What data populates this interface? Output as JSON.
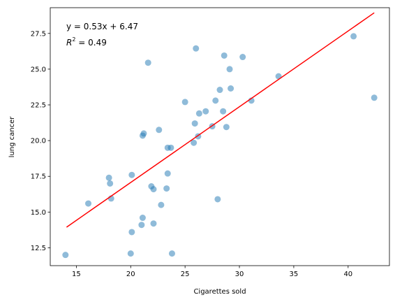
{
  "chart_data": {
    "type": "scatter",
    "xlabel": "Cigarettes sold",
    "ylabel": "lung cancer",
    "xlim": [
      12.6,
      43.8
    ],
    "ylim": [
      11.25,
      29.3
    ],
    "xticks": [
      "15",
      "20",
      "25",
      "30",
      "35",
      "40"
    ],
    "yticks": [
      "12.5",
      "15.0",
      "17.5",
      "20.0",
      "22.5",
      "25.0",
      "27.5"
    ],
    "grid": false,
    "annotation": {
      "equation": "y = 0.53x + 6.47",
      "r2_label": "R",
      "r2_sup": "2",
      "r2_value": " = 0.49"
    },
    "fit": {
      "slope": 0.53,
      "intercept": 6.47,
      "x_range": [
        14.1,
        42.4
      ],
      "color": "#ff0000"
    },
    "point_color": "#1f77b4",
    "points": [
      [
        14.0,
        12.0
      ],
      [
        16.1,
        15.6
      ],
      [
        18.0,
        17.4
      ],
      [
        18.1,
        17.0
      ],
      [
        18.2,
        15.95
      ],
      [
        20.0,
        12.1
      ],
      [
        20.1,
        13.6
      ],
      [
        20.1,
        17.6
      ],
      [
        21.0,
        14.1
      ],
      [
        21.1,
        14.6
      ],
      [
        21.1,
        20.35
      ],
      [
        21.2,
        20.5
      ],
      [
        21.6,
        25.45
      ],
      [
        21.9,
        16.8
      ],
      [
        22.1,
        14.2
      ],
      [
        22.1,
        16.6
      ],
      [
        22.6,
        20.75
      ],
      [
        22.8,
        15.5
      ],
      [
        23.3,
        16.65
      ],
      [
        23.4,
        19.5
      ],
      [
        23.4,
        17.7
      ],
      [
        23.7,
        19.5
      ],
      [
        23.8,
        12.1
      ],
      [
        25.0,
        22.7
      ],
      [
        25.8,
        19.85
      ],
      [
        25.9,
        21.2
      ],
      [
        26.0,
        26.45
      ],
      [
        26.2,
        20.3
      ],
      [
        26.3,
        21.9
      ],
      [
        26.9,
        22.05
      ],
      [
        27.5,
        21.0
      ],
      [
        27.8,
        22.8
      ],
      [
        28.0,
        15.9
      ],
      [
        28.2,
        23.55
      ],
      [
        28.5,
        22.05
      ],
      [
        28.6,
        25.95
      ],
      [
        28.8,
        20.95
      ],
      [
        29.1,
        25.0
      ],
      [
        29.2,
        23.65
      ],
      [
        30.3,
        25.85
      ],
      [
        31.1,
        22.8
      ],
      [
        33.6,
        24.5
      ],
      [
        40.5,
        27.3
      ],
      [
        42.4,
        23.0
      ]
    ]
  }
}
